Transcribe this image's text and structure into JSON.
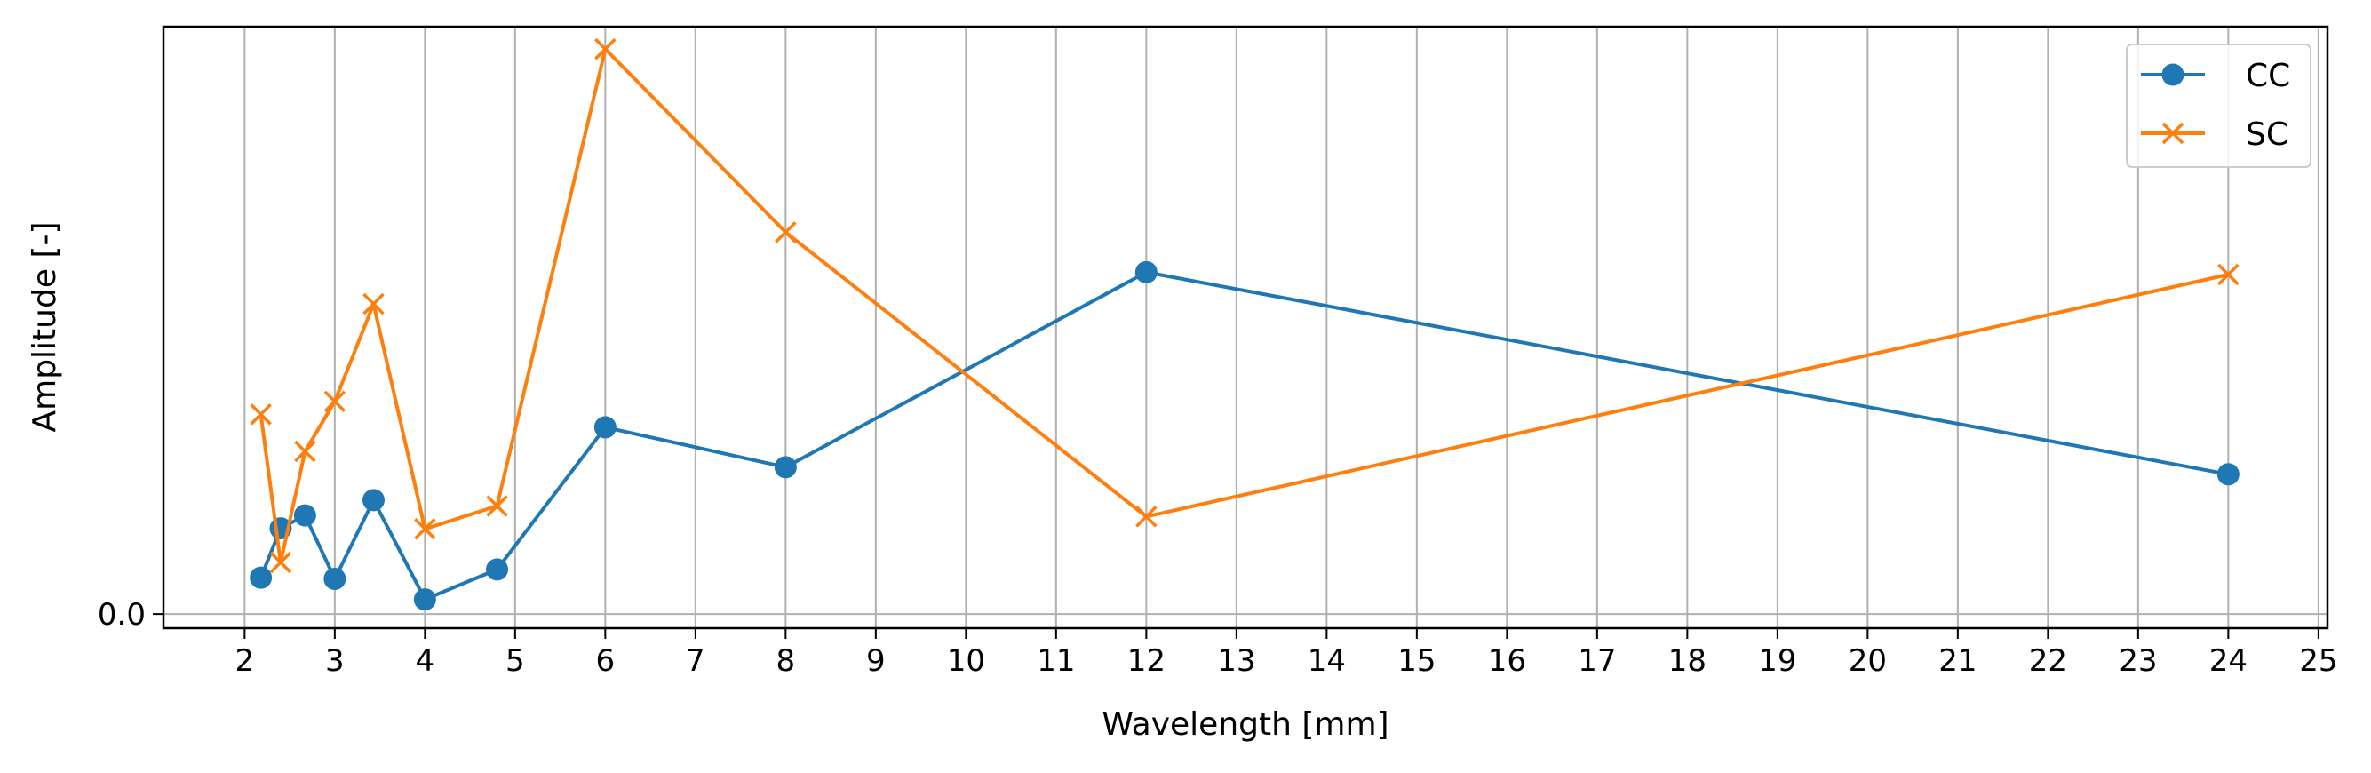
{
  "chart_data": {
    "type": "line",
    "title": "",
    "xlabel": "Wavelength [mm]",
    "ylabel": "Amplitude [-]",
    "xlim": [
      1.1,
      25.1
    ],
    "ylim": [
      -0.024,
      1.0
    ],
    "xticks": [
      2,
      3,
      4,
      5,
      6,
      7,
      8,
      9,
      10,
      11,
      12,
      13,
      14,
      15,
      16,
      17,
      18,
      19,
      20,
      21,
      22,
      23,
      24,
      25
    ],
    "yticks": [
      0.0
    ],
    "ytick_labels": [
      "0.0"
    ],
    "grid": "x",
    "legend": "top-right",
    "series": [
      {
        "name": "CC",
        "color": "#1f77b4",
        "marker": "circle",
        "x": [
          2.18,
          2.4,
          2.67,
          3.0,
          3.43,
          4.0,
          4.8,
          6.0,
          8.0,
          12.0,
          24.0
        ],
        "y": [
          0.062,
          0.146,
          0.168,
          0.06,
          0.194,
          0.025,
          0.076,
          0.318,
          0.25,
          0.582,
          0.238
        ]
      },
      {
        "name": "SC",
        "color": "#ff7f0e",
        "marker": "x",
        "x": [
          2.18,
          2.4,
          2.67,
          3.0,
          3.43,
          4.0,
          4.8,
          6.0,
          8.0,
          12.0,
          24.0
        ],
        "y": [
          0.34,
          0.088,
          0.277,
          0.362,
          0.528,
          0.145,
          0.184,
          0.962,
          0.65,
          0.166,
          0.578
        ]
      }
    ]
  }
}
